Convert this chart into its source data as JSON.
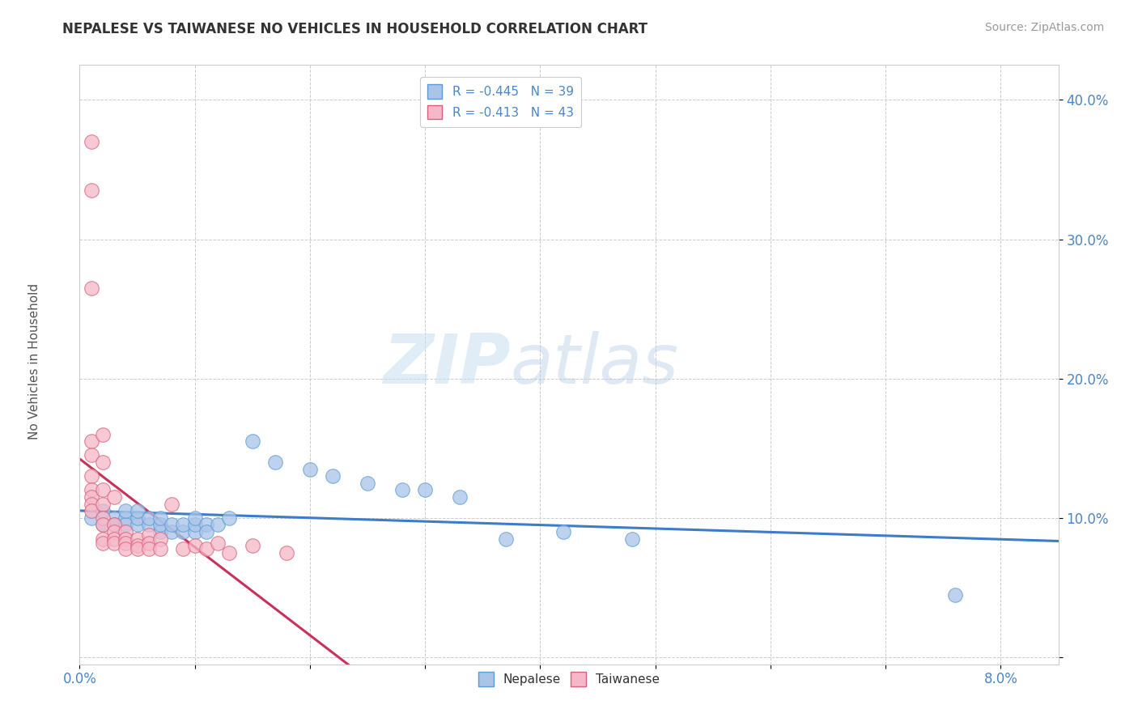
{
  "title": "NEPALESE VS TAIWANESE NO VEHICLES IN HOUSEHOLD CORRELATION CHART",
  "source_text": "Source: ZipAtlas.com",
  "watermark_zip": "ZIP",
  "watermark_atlas": "atlas",
  "xlim": [
    0.0,
    0.085
  ],
  "ylim": [
    -0.005,
    0.425
  ],
  "legend_nepalese": "R = -0.445   N = 39",
  "legend_taiwanese": "R = -0.413   N = 43",
  "nepalese_color": "#aac4e8",
  "taiwanese_color": "#f5b8c8",
  "nepalese_edge_color": "#5b9bd5",
  "taiwanese_edge_color": "#d95f7a",
  "nepalese_line_color": "#3d7cc9",
  "taiwanese_line_color": "#c8325a",
  "nepalese_scatter": [
    [
      0.001,
      0.1
    ],
    [
      0.002,
      0.095
    ],
    [
      0.002,
      0.105
    ],
    [
      0.003,
      0.1
    ],
    [
      0.003,
      0.095
    ],
    [
      0.004,
      0.1
    ],
    [
      0.004,
      0.095
    ],
    [
      0.004,
      0.105
    ],
    [
      0.005,
      0.095
    ],
    [
      0.005,
      0.1
    ],
    [
      0.005,
      0.105
    ],
    [
      0.006,
      0.095
    ],
    [
      0.006,
      0.1
    ],
    [
      0.007,
      0.09
    ],
    [
      0.007,
      0.095
    ],
    [
      0.007,
      0.1
    ],
    [
      0.008,
      0.09
    ],
    [
      0.008,
      0.095
    ],
    [
      0.009,
      0.09
    ],
    [
      0.009,
      0.095
    ],
    [
      0.01,
      0.09
    ],
    [
      0.01,
      0.095
    ],
    [
      0.01,
      0.1
    ],
    [
      0.011,
      0.095
    ],
    [
      0.011,
      0.09
    ],
    [
      0.012,
      0.095
    ],
    [
      0.013,
      0.1
    ],
    [
      0.015,
      0.155
    ],
    [
      0.017,
      0.14
    ],
    [
      0.02,
      0.135
    ],
    [
      0.022,
      0.13
    ],
    [
      0.025,
      0.125
    ],
    [
      0.028,
      0.12
    ],
    [
      0.03,
      0.12
    ],
    [
      0.033,
      0.115
    ],
    [
      0.037,
      0.085
    ],
    [
      0.042,
      0.09
    ],
    [
      0.048,
      0.085
    ],
    [
      0.076,
      0.045
    ]
  ],
  "taiwanese_scatter": [
    [
      0.001,
      0.37
    ],
    [
      0.001,
      0.335
    ],
    [
      0.001,
      0.265
    ],
    [
      0.001,
      0.155
    ],
    [
      0.001,
      0.145
    ],
    [
      0.001,
      0.13
    ],
    [
      0.001,
      0.12
    ],
    [
      0.001,
      0.115
    ],
    [
      0.001,
      0.11
    ],
    [
      0.001,
      0.105
    ],
    [
      0.002,
      0.16
    ],
    [
      0.002,
      0.14
    ],
    [
      0.002,
      0.12
    ],
    [
      0.002,
      0.11
    ],
    [
      0.002,
      0.1
    ],
    [
      0.002,
      0.095
    ],
    [
      0.002,
      0.085
    ],
    [
      0.002,
      0.082
    ],
    [
      0.003,
      0.115
    ],
    [
      0.003,
      0.095
    ],
    [
      0.003,
      0.09
    ],
    [
      0.003,
      0.085
    ],
    [
      0.003,
      0.082
    ],
    [
      0.004,
      0.09
    ],
    [
      0.004,
      0.085
    ],
    [
      0.004,
      0.082
    ],
    [
      0.004,
      0.078
    ],
    [
      0.005,
      0.085
    ],
    [
      0.005,
      0.08
    ],
    [
      0.005,
      0.078
    ],
    [
      0.006,
      0.088
    ],
    [
      0.006,
      0.082
    ],
    [
      0.006,
      0.078
    ],
    [
      0.007,
      0.085
    ],
    [
      0.007,
      0.078
    ],
    [
      0.008,
      0.11
    ],
    [
      0.009,
      0.078
    ],
    [
      0.01,
      0.08
    ],
    [
      0.011,
      0.078
    ],
    [
      0.012,
      0.082
    ],
    [
      0.013,
      0.075
    ],
    [
      0.015,
      0.08
    ],
    [
      0.018,
      0.075
    ]
  ],
  "x_tick_positions": [
    0.0,
    0.01,
    0.02,
    0.03,
    0.04,
    0.05,
    0.06,
    0.07,
    0.08
  ],
  "x_tick_labels": [
    "0.0%",
    "",
    "",
    "",
    "",
    "",
    "",
    "",
    "8.0%"
  ],
  "y_tick_positions": [
    0.0,
    0.1,
    0.2,
    0.3,
    0.4
  ],
  "y_tick_labels": [
    "",
    "10.0%",
    "20.0%",
    "30.0%",
    "40.0%"
  ]
}
